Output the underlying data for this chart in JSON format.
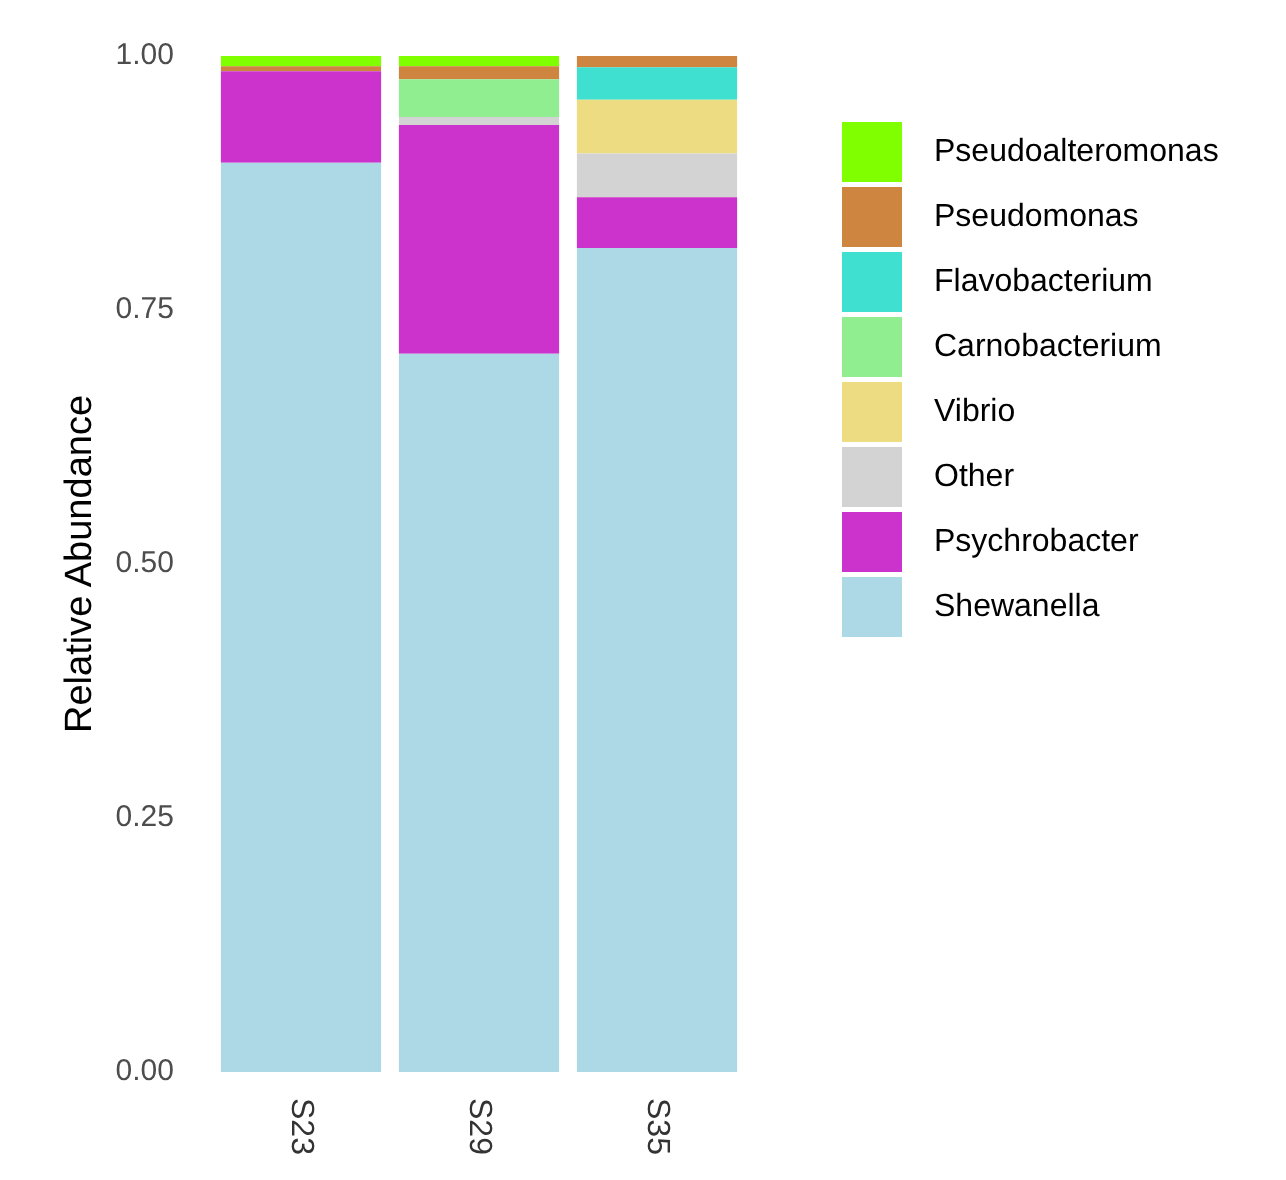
{
  "chart_data": {
    "type": "bar",
    "stacked": true,
    "ylabel": "Relative Abundance",
    "categories": [
      "S23",
      "S29",
      "S35"
    ],
    "series": [
      {
        "name": "Shewanella",
        "color": "#add8e6",
        "values": [
          0.895,
          0.707,
          0.811
        ]
      },
      {
        "name": "Psychrobacter",
        "color": "#cc33cc",
        "values": [
          0.09,
          0.225,
          0.05
        ]
      },
      {
        "name": "Other",
        "color": "#d3d3d3",
        "values": [
          null,
          0.008,
          0.043
        ]
      },
      {
        "name": "Vibrio",
        "color": "#eedc82",
        "values": [
          null,
          null,
          0.053
        ]
      },
      {
        "name": "Carnobacterium",
        "color": "#90ee90",
        "values": [
          null,
          0.037,
          null
        ]
      },
      {
        "name": "Flavobacterium",
        "color": "#40e0d0",
        "values": [
          null,
          null,
          0.032
        ]
      },
      {
        "name": "Pseudomonas",
        "color": "#cd853f",
        "values": [
          0.005,
          0.013,
          0.011
        ]
      },
      {
        "name": "Pseudoalteromonas",
        "color": "#7fff00",
        "values": [
          0.01,
          0.01,
          null
        ]
      }
    ],
    "ylim": [
      0,
      1
    ],
    "yticks": [
      {
        "value": 0,
        "label": "0.00"
      },
      0.25,
      {
        "value": 0.5,
        "label": "0.50"
      },
      0.75,
      {
        "value": 1,
        "label": "1.00"
      }
    ],
    "legend": "right"
  }
}
